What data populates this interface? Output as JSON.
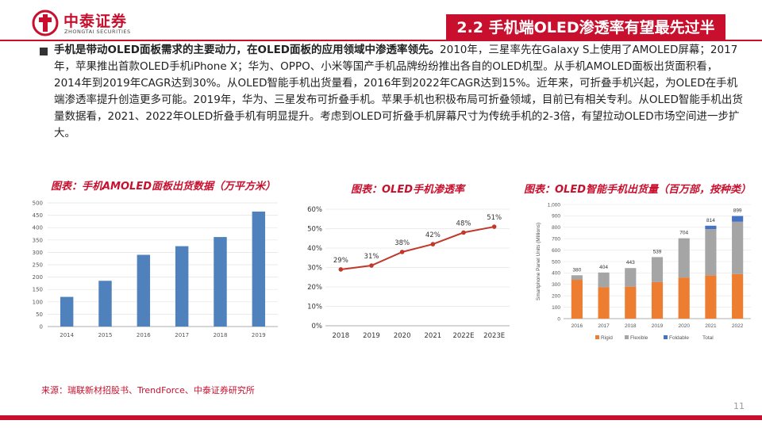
{
  "header": {
    "logo_cn": "中泰证券",
    "logo_en": "ZHONGTAI SECURITIES",
    "section_title": "2.2 手机端OLED渗透率有望最先过半"
  },
  "intro": {
    "lead": "手机是带动OLED面板需求的主要动力，在OLED面板的应用领域中渗透率领先。",
    "body": "2010年，三星率先在Galaxy S上使用了AMOLED屏幕；2017年，苹果推出首款OLED手机iPhone X；华为、OPPO、小米等国产手机品牌纷纷推出各自的OLED机型。从手机AMOLED面板出货面积看，2014年到2019年CAGR达到30%。从OLED智能手机出货量看，2016年到2022年CAGR达到15%。近年来，可折叠手机兴起，为OLED在手机端渗透率提升创造更多可能。2019年，华为、三星发布可折叠手机。苹果手机也积极布局可折叠领域，目前已有相关专利。从OLED智能手机出货量数据看，2021、2022年OLED折叠手机有明显提升。考虑到OLED可折叠手机屏幕尺寸为传统手机的2-3倍，有望拉动OLED市场空间进一步扩大。"
  },
  "colors": {
    "accent": "#c8102e",
    "bar_blue": "#4f81bd",
    "line_red": "#c0392b",
    "rigid": "#ed7d31",
    "flexible": "#a5a5a5",
    "foldable": "#4472c4"
  },
  "chart_data": [
    {
      "type": "bar",
      "title": "图表：手机AMOLED面板出货数据（万平方米）",
      "categories": [
        "2014",
        "2015",
        "2016",
        "2017",
        "2018",
        "2019"
      ],
      "values": [
        120,
        185,
        290,
        325,
        362,
        465
      ],
      "yticks": [
        "0",
        "50",
        "100",
        "150",
        "200",
        "250",
        "300",
        "350",
        "400",
        "450",
        "500"
      ],
      "ylim": [
        0,
        500
      ]
    },
    {
      "type": "line",
      "title": "图表：OLED手机渗透率",
      "categories": [
        "2018",
        "2019",
        "2020",
        "2021",
        "2022E",
        "2023E"
      ],
      "values": [
        29,
        31,
        38,
        42,
        48,
        51
      ],
      "labels": [
        "29%",
        "31%",
        "38%",
        "42%",
        "48%",
        "51%"
      ],
      "yticks": [
        "0%",
        "10%",
        "20%",
        "30%",
        "40%",
        "50%",
        "60%"
      ],
      "ylim": [
        0,
        60
      ]
    },
    {
      "type": "bar",
      "stacked": true,
      "title": "图表：OLED智能手机出货量（百万部，按种类）",
      "ylabel": "Smartphone Panel Units (Millions)",
      "categories": [
        "2016",
        "2017",
        "2018",
        "2019",
        "2020",
        "2021",
        "2022"
      ],
      "series": [
        {
          "name": "Rigid",
          "values": [
            340,
            275,
            280,
            320,
            360,
            380,
            390
          ]
        },
        {
          "name": "Flexible",
          "values": [
            40,
            129,
            163,
            219,
            344,
            404,
            459
          ]
        },
        {
          "name": "Foldable",
          "values": [
            0,
            0,
            0,
            0,
            0,
            30,
            50
          ]
        }
      ],
      "totals": [
        380,
        404,
        443,
        539,
        704,
        814,
        899
      ],
      "total_labels": [
        "380",
        "404",
        "443",
        "539",
        "704",
        "814",
        "899"
      ],
      "legend_total": "Total",
      "yticks": [
        "0",
        "100",
        "200",
        "300",
        "400",
        "500",
        "600",
        "700",
        "800",
        "900",
        "1,000"
      ],
      "ylim": [
        0,
        1000
      ]
    }
  ],
  "source": "来源：瑞联新材招股书、TrendForce、中泰证券研究所",
  "page_number": "11"
}
